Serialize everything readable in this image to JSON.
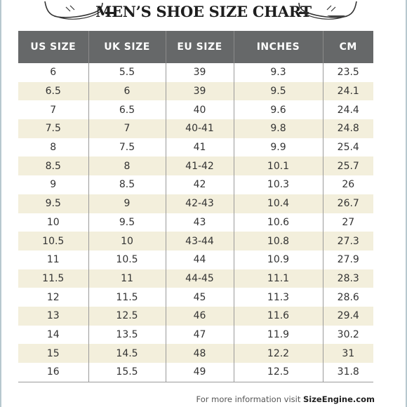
{
  "title": "MEN’S SHOE SIZE CHART",
  "columns": [
    "US SIZE",
    "UK SIZE",
    "EU SIZE",
    "INCHES",
    "CM"
  ],
  "rows": [
    [
      "6",
      "5.5",
      "39",
      "9.3",
      "23.5"
    ],
    [
      "6.5",
      "6",
      "39",
      "9.5",
      "24.1"
    ],
    [
      "7",
      "6.5",
      "40",
      "9.6",
      "24.4"
    ],
    [
      "7.5",
      "7",
      "40-41",
      "9.8",
      "24.8"
    ],
    [
      "8",
      "7.5",
      "41",
      "9.9",
      "25.4"
    ],
    [
      "8.5",
      "8",
      "41-42",
      "10.1",
      "25.7"
    ],
    [
      "9",
      "8.5",
      "42",
      "10.3",
      "26"
    ],
    [
      "9.5",
      "9",
      "42-43",
      "10.4",
      "26.7"
    ],
    [
      "10",
      "9.5",
      "43",
      "10.6",
      "27"
    ],
    [
      "10.5",
      "10",
      "43-44",
      "10.8",
      "27.3"
    ],
    [
      "11",
      "10.5",
      "44",
      "10.9",
      "27.9"
    ],
    [
      "11.5",
      "11",
      "44-45",
      "11.1",
      "28.3"
    ],
    [
      "12",
      "11.5",
      "45",
      "11.3",
      "28.6"
    ],
    [
      "13",
      "12.5",
      "46",
      "11.6",
      "29.4"
    ],
    [
      "14",
      "13.5",
      "47",
      "11.9",
      "30.2"
    ],
    [
      "15",
      "14.5",
      "48",
      "12.2",
      "31"
    ],
    [
      "16",
      "15.5",
      "49",
      "12.5",
      "31.8"
    ]
  ],
  "footer": {
    "text": "For more information visit ",
    "site": "SizeEngine.com"
  },
  "colors": {
    "header_bg": "#666869",
    "stripe": "#f3efdc"
  },
  "icons": [
    "dress-shoe-icon"
  ]
}
